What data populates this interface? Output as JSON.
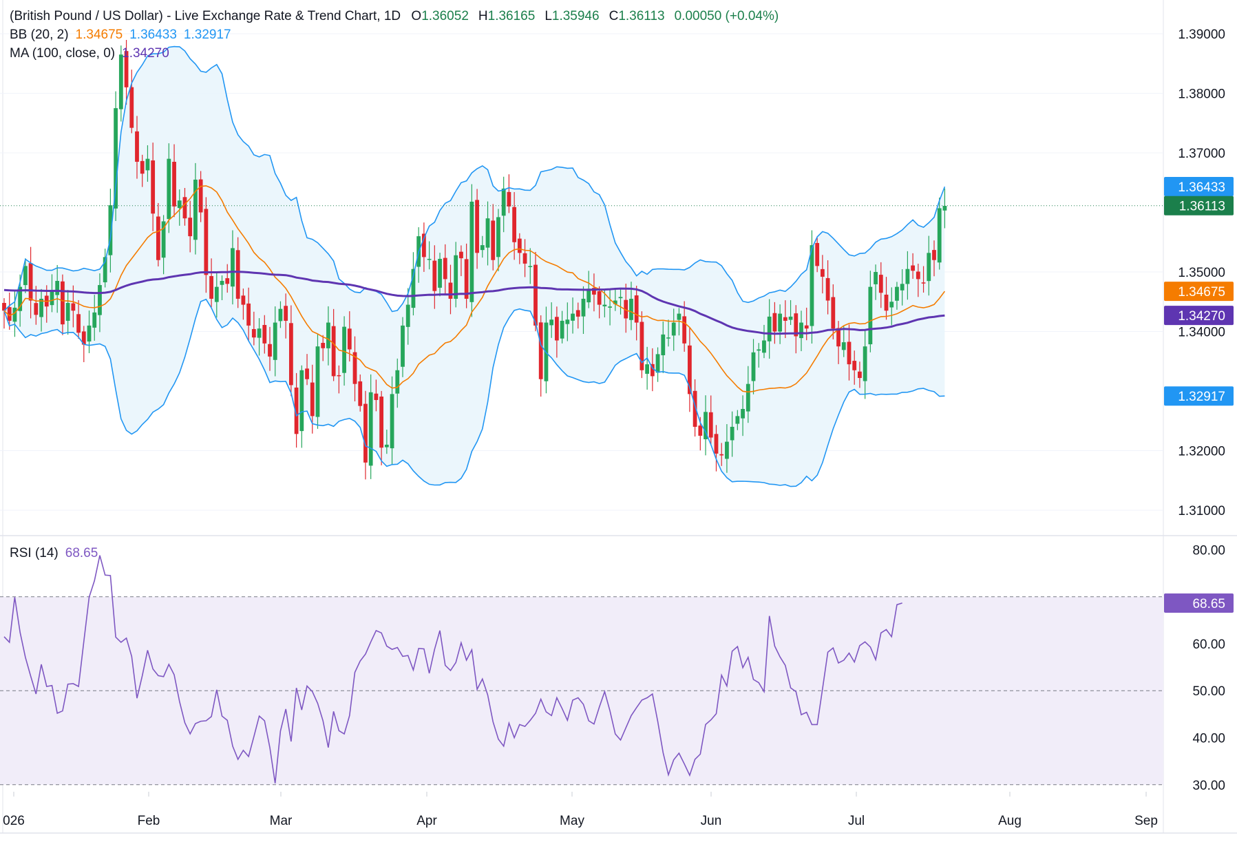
{
  "header": {
    "title": "(British Pound / US Dollar) - Live Exchange Rate & Trend Chart, 1D",
    "open_label": "O",
    "open": "1.36052",
    "high_label": "H",
    "high": "1.36165",
    "low_label": "L",
    "low": "1.35946",
    "close_label": "C",
    "close": "1.36113",
    "change": "0.00050 (+0.04%)",
    "bb_label": "BB (20, 2)",
    "bb_mid": "1.34675",
    "bb_upper": "1.36433",
    "bb_lower": "1.32917",
    "ma_label": "MA (100, close, 0)",
    "ma_value": "1.34270",
    "rsi_label": "RSI (14)",
    "rsi_value": "68.65"
  },
  "colors": {
    "up": "#26a65b",
    "down": "#e0262d",
    "bb_band": "#2196f3",
    "bb_mid": "#f57c00",
    "ma": "#5e35b1",
    "rsi": "#7e57c2",
    "last_price": "#1b7f4b",
    "axis_text": "#131722"
  },
  "chart_data": [
    {
      "type": "candlestick",
      "price_axis_ticks": [
        "1.39000",
        "1.38000",
        "1.37000",
        "1.35000",
        "1.34000",
        "1.32000",
        "1.31000"
      ],
      "ylim": [
        1.3055,
        1.3915
      ],
      "x_axis_labels": [
        "026",
        "Feb",
        "Mar",
        "Apr",
        "May",
        "Jun",
        "Jul",
        "Aug",
        "Sep"
      ],
      "closes": [
        1.3435,
        1.3418,
        1.344,
        1.3475,
        1.351,
        1.3452,
        1.3428,
        1.3455,
        1.3442,
        1.3467,
        1.3485,
        1.3412,
        1.3448,
        1.3435,
        1.3398,
        1.3378,
        1.341,
        1.3432,
        1.3478,
        1.3525,
        1.3612,
        1.3775,
        1.3865,
        1.381,
        1.3742,
        1.3685,
        1.3665,
        1.369,
        1.3598,
        1.352,
        1.3585,
        1.369,
        1.361,
        1.362,
        1.359,
        1.356,
        1.3655,
        1.36,
        1.3495,
        1.3455,
        1.3475,
        1.3485,
        1.348,
        1.354,
        1.3455,
        1.3445,
        1.341,
        1.339,
        1.3405,
        1.338,
        1.3358,
        1.3415,
        1.3438,
        1.3418,
        1.331,
        1.3228,
        1.3335,
        1.332,
        1.3258,
        1.3375,
        1.3372,
        1.3415,
        1.3325,
        1.3325,
        1.3408,
        1.337,
        1.3312,
        1.3275,
        1.318,
        1.3298,
        1.3285,
        1.3205,
        1.321,
        1.3295,
        1.3335,
        1.341,
        1.3445,
        1.3505,
        1.356,
        1.3525,
        1.3522,
        1.3468,
        1.3522,
        1.3488,
        1.3455,
        1.3528,
        1.3523,
        1.3455,
        1.3618,
        1.3532,
        1.3545,
        1.359,
        1.352,
        1.3592,
        1.364,
        1.361,
        1.355,
        1.3532,
        1.3514,
        1.351,
        1.341,
        1.332,
        1.3415,
        1.342,
        1.3385,
        1.3418,
        1.342,
        1.343,
        1.3425,
        1.3455,
        1.3472,
        1.3462,
        1.3445,
        1.3445,
        1.3442,
        1.3452,
        1.3458,
        1.3422,
        1.3455,
        1.3415,
        1.3335,
        1.3345,
        1.3325,
        1.3362,
        1.3395,
        1.339,
        1.3415,
        1.343,
        1.338,
        1.3295,
        1.324,
        1.3225,
        1.3265,
        1.3222,
        1.3195,
        1.3192,
        1.3215,
        1.324,
        1.3258,
        1.327,
        1.3312,
        1.3365,
        1.337,
        1.3385,
        1.3425,
        1.34,
        1.343,
        1.3418,
        1.3425,
        1.3392,
        1.3415,
        1.3405,
        1.3545,
        1.351,
        1.3492,
        1.3452,
        1.3405,
        1.3375,
        1.3382,
        1.3345,
        1.3335,
        1.3322,
        1.3375,
        1.3475,
        1.35,
        1.3465,
        1.3435,
        1.345,
        1.3475,
        1.348,
        1.3505,
        1.3502,
        1.3488,
        1.3482,
        1.3532,
        1.352,
        1.3607,
        1.3611
      ],
      "bollinger_upper_last": 1.36433,
      "bollinger_middle_last": 1.34675,
      "bollinger_lower_last": 1.32917,
      "ma100_last": 1.3427,
      "last_close": 1.36113,
      "price_labels": [
        "1.36433",
        "1.36113",
        "1.34675",
        "1.34270",
        "1.32917"
      ]
    },
    {
      "type": "line",
      "name": "RSI (14)",
      "ylim": [
        28.5,
        83
      ],
      "y_axis_ticks": [
        "80.00",
        "60.00",
        "50.00",
        "40.00",
        "30.00"
      ],
      "reference_lines": [
        70,
        50,
        30
      ],
      "overbought_band": [
        30,
        70
      ],
      "last_value_label": "68.65",
      "values": [
        61.5,
        60.3,
        69.9,
        62.4,
        57.1,
        53.1,
        49.3,
        55.6,
        50.9,
        51.1,
        45.2,
        45.7,
        51.4,
        51.5,
        50.9,
        60.5,
        69.9,
        73.4,
        78.8,
        74.6,
        74.5,
        61.4,
        60.3,
        61.2,
        57.3,
        48.4,
        53.2,
        58.6,
        54.6,
        53.2,
        53.0,
        55.6,
        53.4,
        47.7,
        43.2,
        40.8,
        43.0,
        43.5,
        43.6,
        44.5,
        50.2,
        44.6,
        43.7,
        38.2,
        35.4,
        37.3,
        36.0,
        40.2,
        44.6,
        43.6,
        37.9,
        30.3,
        41.4,
        46.1,
        39.2,
        50.6,
        45.9,
        51.0,
        49.8,
        47.3,
        43.6,
        37.9,
        45.6,
        41.5,
        40.8,
        44.7,
        53.9,
        56.3,
        57.8,
        60.4,
        62.8,
        62.3,
        59.5,
        58.8,
        59.2,
        57.3,
        57.5,
        54.4,
        59.0,
        58.9,
        53.7,
        58.8,
        62.8,
        55.4,
        54.3,
        56.0,
        60.2,
        56.5,
        58.7,
        50.3,
        52.5,
        49.1,
        43.4,
        39.7,
        38.2,
        43.1,
        40.0,
        42.8,
        42.4,
        43.7,
        45.2,
        48.2,
        45.5,
        44.7,
        48.5,
        46.2,
        43.7,
        48.0,
        48.5,
        47.1,
        43.6,
        42.9,
        46.5,
        49.8,
        45.7,
        40.8,
        39.5,
        42.1,
        44.7,
        46.4,
        48.0,
        48.5,
        49.3,
        43.4,
        36.8,
        32.1,
        35.3,
        36.7,
        34.4,
        32.0,
        35.4,
        36.5,
        42.8,
        43.8,
        45.1,
        53.3,
        51.0,
        58.4,
        59.4,
        54.9,
        57.1,
        52.4,
        51.7,
        49.8,
        65.9,
        59.5,
        57.2,
        55.4,
        50.6,
        49.8,
        44.9,
        45.4,
        42.8,
        42.8,
        50.4,
        58.2,
        59.1,
        55.9,
        56.5,
        58.0,
        56.1,
        59.6,
        60.4,
        59.3,
        56.6,
        62.3,
        63.0,
        61.5,
        68.3,
        68.65
      ]
    }
  ]
}
